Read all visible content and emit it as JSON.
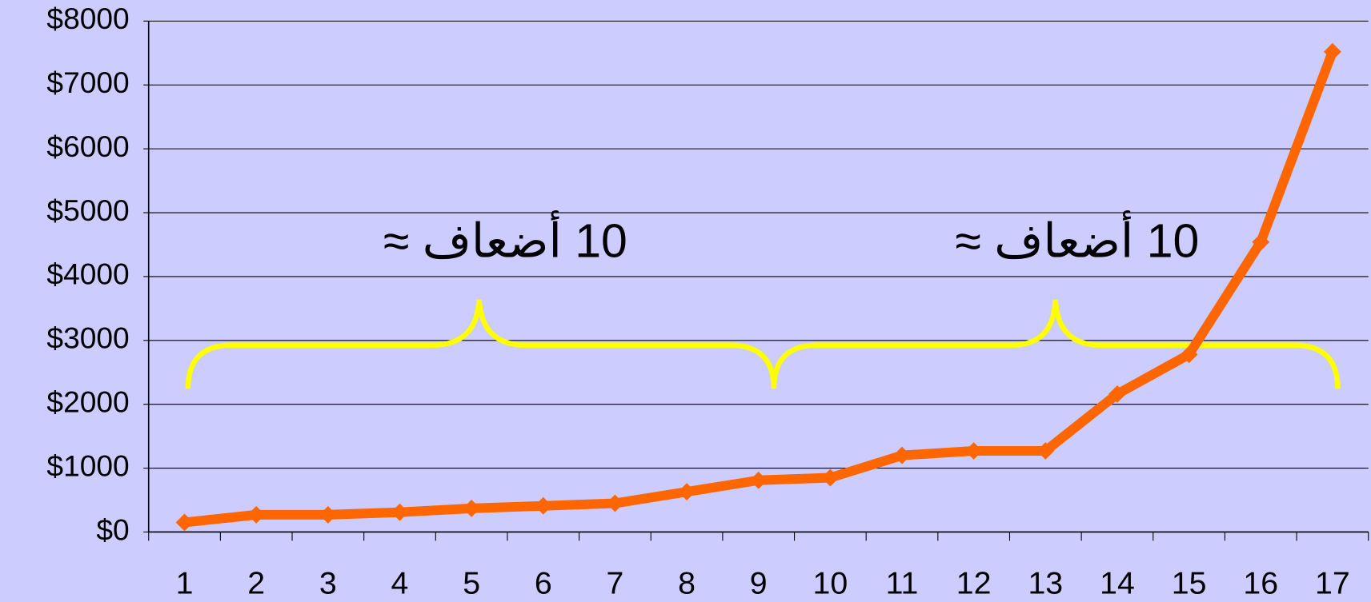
{
  "chart_data": {
    "type": "line",
    "categories": [
      "1",
      "2",
      "3",
      "4",
      "5",
      "6",
      "7",
      "8",
      "9",
      "10",
      "11",
      "12",
      "13",
      "14",
      "15",
      "16",
      "17"
    ],
    "series": [
      {
        "color": "#ff6600",
        "values": [
          150,
          270,
          270,
          310,
          370,
          410,
          450,
          630,
          810,
          850,
          1200,
          1270,
          1270,
          2160,
          2780,
          4540,
          7520
        ]
      }
    ],
    "ylim": [
      0,
      8000
    ],
    "yticks": [
      {
        "value": 0,
        "label": "$0"
      },
      {
        "value": 1000,
        "label": "$1000"
      },
      {
        "value": 2000,
        "label": "$2000"
      },
      {
        "value": 3000,
        "label": "$3000"
      },
      {
        "value": 4000,
        "label": "$4000"
      },
      {
        "value": 5000,
        "label": "$5000"
      },
      {
        "value": 6000,
        "label": "$6000"
      },
      {
        "value": 7000,
        "label": "$7000"
      },
      {
        "value": 8000,
        "label": "$8000"
      }
    ],
    "grid": true,
    "annotations": [
      "10 أضعاف ≈",
      "10 أضعاف ≈"
    ]
  }
}
